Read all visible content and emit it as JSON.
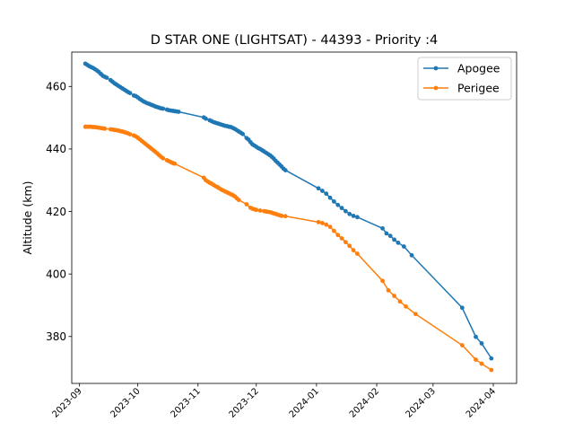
{
  "chart_data": {
    "type": "line",
    "title": "D STAR ONE (LIGHTSAT) - 44393 - Priority :4",
    "xlabel": "",
    "ylabel": "Altitude (km)",
    "xlim": [
      "2023-08-28",
      "2024-04-13"
    ],
    "ylim": [
      365,
      471
    ],
    "yticks": [
      380,
      400,
      420,
      440,
      460
    ],
    "xticks": [
      "2023-09",
      "2023-10",
      "2023-11",
      "2023-12",
      "2024-01",
      "2024-02",
      "2024-03",
      "2024-04"
    ],
    "legend_position": "top-right",
    "grid": false,
    "series": [
      {
        "name": "Apogee",
        "color": "#1f77b4",
        "points": [
          [
            "2023-09-04",
            467.3
          ],
          [
            "2023-09-05",
            466.9
          ],
          [
            "2023-09-06",
            466.5
          ],
          [
            "2023-09-07",
            466.2
          ],
          [
            "2023-09-08",
            465.9
          ],
          [
            "2023-09-09",
            465.5
          ],
          [
            "2023-09-10",
            465.1
          ],
          [
            "2023-09-11",
            464.6
          ],
          [
            "2023-09-12",
            464.0
          ],
          [
            "2023-09-13",
            463.4
          ],
          [
            "2023-09-14",
            463.1
          ],
          [
            "2023-09-15",
            462.8
          ],
          [
            "2023-09-17",
            462.0
          ],
          [
            "2023-09-18",
            461.5
          ],
          [
            "2023-09-19",
            461.0
          ],
          [
            "2023-09-20",
            460.6
          ],
          [
            "2023-09-21",
            460.2
          ],
          [
            "2023-09-22",
            459.8
          ],
          [
            "2023-09-23",
            459.4
          ],
          [
            "2023-09-24",
            459.0
          ],
          [
            "2023-09-25",
            458.6
          ],
          [
            "2023-09-26",
            458.2
          ],
          [
            "2023-09-27",
            457.9
          ],
          [
            "2023-09-29",
            457.1
          ],
          [
            "2023-09-30",
            456.9
          ],
          [
            "2023-10-01",
            456.5
          ],
          [
            "2023-10-02",
            456.0
          ],
          [
            "2023-10-03",
            455.6
          ],
          [
            "2023-10-04",
            455.2
          ],
          [
            "2023-10-05",
            454.9
          ],
          [
            "2023-10-06",
            454.6
          ],
          [
            "2023-10-07",
            454.4
          ],
          [
            "2023-10-08",
            454.1
          ],
          [
            "2023-10-09",
            453.9
          ],
          [
            "2023-10-10",
            453.6
          ],
          [
            "2023-10-11",
            453.4
          ],
          [
            "2023-10-12",
            453.2
          ],
          [
            "2023-10-13",
            453.0
          ],
          [
            "2023-10-14",
            452.9
          ],
          [
            "2023-10-16",
            452.6
          ],
          [
            "2023-10-17",
            452.4
          ],
          [
            "2023-10-18",
            452.3
          ],
          [
            "2023-10-19",
            452.2
          ],
          [
            "2023-10-20",
            452.1
          ],
          [
            "2023-10-21",
            452.0
          ],
          [
            "2023-10-22",
            451.9
          ],
          [
            "2023-11-04",
            450.1
          ],
          [
            "2023-11-05",
            449.7
          ],
          [
            "2023-11-07",
            449.2
          ],
          [
            "2023-11-08",
            448.9
          ],
          [
            "2023-11-09",
            448.6
          ],
          [
            "2023-11-10",
            448.4
          ],
          [
            "2023-11-11",
            448.2
          ],
          [
            "2023-11-12",
            448.0
          ],
          [
            "2023-11-13",
            447.8
          ],
          [
            "2023-11-14",
            447.6
          ],
          [
            "2023-11-15",
            447.4
          ],
          [
            "2023-11-16",
            447.3
          ],
          [
            "2023-11-17",
            447.1
          ],
          [
            "2023-11-18",
            447.0
          ],
          [
            "2023-11-19",
            446.7
          ],
          [
            "2023-11-20",
            446.4
          ],
          [
            "2023-11-21",
            446.0
          ],
          [
            "2023-11-22",
            445.6
          ],
          [
            "2023-11-23",
            445.2
          ],
          [
            "2023-11-24",
            444.8
          ],
          [
            "2023-11-26",
            443.5
          ],
          [
            "2023-11-27",
            443.0
          ],
          [
            "2023-11-28",
            442.2
          ],
          [
            "2023-11-29",
            441.5
          ],
          [
            "2023-11-30",
            441.1
          ],
          [
            "2023-12-01",
            440.7
          ],
          [
            "2023-12-02",
            440.3
          ],
          [
            "2023-12-03",
            440.0
          ],
          [
            "2023-12-04",
            439.6
          ],
          [
            "2023-12-05",
            439.2
          ],
          [
            "2023-12-06",
            438.8
          ],
          [
            "2023-12-07",
            438.4
          ],
          [
            "2023-12-08",
            438.0
          ],
          [
            "2023-12-09",
            437.5
          ],
          [
            "2023-12-10",
            436.9
          ],
          [
            "2023-12-11",
            436.2
          ],
          [
            "2023-12-12",
            435.6
          ],
          [
            "2023-12-13",
            435.0
          ],
          [
            "2023-12-14",
            434.4
          ],
          [
            "2023-12-15",
            433.7
          ],
          [
            "2023-12-16",
            433.2
          ],
          [
            "2024-01-02",
            427.4
          ],
          [
            "2024-01-04",
            426.6
          ],
          [
            "2024-01-06",
            425.7
          ],
          [
            "2024-01-08",
            424.4
          ],
          [
            "2024-01-10",
            423.2
          ],
          [
            "2024-01-12",
            422.1
          ],
          [
            "2024-01-14",
            421.1
          ],
          [
            "2024-01-16",
            420.1
          ],
          [
            "2024-01-18",
            419.2
          ],
          [
            "2024-01-20",
            418.6
          ],
          [
            "2024-01-22",
            418.2
          ],
          [
            "2024-02-04",
            414.6
          ],
          [
            "2024-02-06",
            413.0
          ],
          [
            "2024-02-08",
            412.2
          ],
          [
            "2024-02-10",
            411.0
          ],
          [
            "2024-02-12",
            410.0
          ],
          [
            "2024-02-15",
            408.8
          ],
          [
            "2024-02-19",
            406.0
          ],
          [
            "2024-03-16",
            389.2
          ],
          [
            "2024-03-23",
            379.9
          ],
          [
            "2024-03-26",
            377.8
          ],
          [
            "2024-03-31",
            373.0
          ]
        ]
      },
      {
        "name": "Perigee",
        "color": "#ff7f0e",
        "points": [
          [
            "2023-09-04",
            447.1
          ],
          [
            "2023-09-05",
            447.1
          ],
          [
            "2023-09-06",
            447.1
          ],
          [
            "2023-09-07",
            447.1
          ],
          [
            "2023-09-08",
            447.0
          ],
          [
            "2023-09-09",
            447.0
          ],
          [
            "2023-09-10",
            446.9
          ],
          [
            "2023-09-11",
            446.8
          ],
          [
            "2023-09-12",
            446.7
          ],
          [
            "2023-09-13",
            446.6
          ],
          [
            "2023-09-14",
            446.5
          ],
          [
            "2023-09-17",
            446.3
          ],
          [
            "2023-09-18",
            446.2
          ],
          [
            "2023-09-19",
            446.1
          ],
          [
            "2023-09-20",
            446.0
          ],
          [
            "2023-09-21",
            445.9
          ],
          [
            "2023-09-22",
            445.7
          ],
          [
            "2023-09-23",
            445.6
          ],
          [
            "2023-09-24",
            445.4
          ],
          [
            "2023-09-25",
            445.2
          ],
          [
            "2023-09-26",
            445.0
          ],
          [
            "2023-09-27",
            444.7
          ],
          [
            "2023-09-29",
            444.3
          ],
          [
            "2023-09-30",
            444.0
          ],
          [
            "2023-10-01",
            443.6
          ],
          [
            "2023-10-02",
            443.1
          ],
          [
            "2023-10-03",
            442.6
          ],
          [
            "2023-10-04",
            442.1
          ],
          [
            "2023-10-05",
            441.6
          ],
          [
            "2023-10-06",
            441.1
          ],
          [
            "2023-10-07",
            440.6
          ],
          [
            "2023-10-08",
            440.1
          ],
          [
            "2023-10-09",
            439.6
          ],
          [
            "2023-10-10",
            439.1
          ],
          [
            "2023-10-11",
            438.6
          ],
          [
            "2023-10-12",
            438.0
          ],
          [
            "2023-10-13",
            437.5
          ],
          [
            "2023-10-14",
            437.0
          ],
          [
            "2023-10-16",
            436.4
          ],
          [
            "2023-10-17",
            436.1
          ],
          [
            "2023-10-18",
            435.8
          ],
          [
            "2023-10-19",
            435.5
          ],
          [
            "2023-10-20",
            435.3
          ],
          [
            "2023-11-04",
            430.8
          ],
          [
            "2023-11-05",
            430.0
          ],
          [
            "2023-11-06",
            429.6
          ],
          [
            "2023-11-07",
            429.2
          ],
          [
            "2023-11-08",
            428.9
          ],
          [
            "2023-11-09",
            428.5
          ],
          [
            "2023-11-10",
            428.1
          ],
          [
            "2023-11-11",
            427.8
          ],
          [
            "2023-11-12",
            427.4
          ],
          [
            "2023-11-13",
            427.0
          ],
          [
            "2023-11-14",
            426.7
          ],
          [
            "2023-11-15",
            426.4
          ],
          [
            "2023-11-16",
            426.1
          ],
          [
            "2023-11-17",
            425.8
          ],
          [
            "2023-11-18",
            425.5
          ],
          [
            "2023-11-19",
            425.2
          ],
          [
            "2023-11-20",
            424.8
          ],
          [
            "2023-11-21",
            424.2
          ],
          [
            "2023-11-22",
            423.7
          ],
          [
            "2023-11-26",
            422.3
          ],
          [
            "2023-11-28",
            421.2
          ],
          [
            "2023-11-29",
            420.9
          ],
          [
            "2023-11-30",
            420.7
          ],
          [
            "2023-12-01",
            420.5
          ],
          [
            "2023-12-03",
            420.3
          ],
          [
            "2023-12-05",
            420.1
          ],
          [
            "2023-12-06",
            420.0
          ],
          [
            "2023-12-07",
            419.9
          ],
          [
            "2023-12-08",
            419.8
          ],
          [
            "2023-12-09",
            419.6
          ],
          [
            "2023-12-10",
            419.4
          ],
          [
            "2023-12-11",
            419.2
          ],
          [
            "2023-12-12",
            419.0
          ],
          [
            "2023-12-13",
            418.8
          ],
          [
            "2023-12-14",
            418.6
          ],
          [
            "2023-12-16",
            418.5
          ],
          [
            "2024-01-02",
            416.6
          ],
          [
            "2024-01-04",
            416.3
          ],
          [
            "2024-01-06",
            415.8
          ],
          [
            "2024-01-08",
            415.1
          ],
          [
            "2024-01-10",
            413.8
          ],
          [
            "2024-01-12",
            412.5
          ],
          [
            "2024-01-14",
            411.4
          ],
          [
            "2024-01-16",
            410.2
          ],
          [
            "2024-01-18",
            409.0
          ],
          [
            "2024-01-20",
            407.6
          ],
          [
            "2024-01-22",
            406.5
          ],
          [
            "2024-02-04",
            397.8
          ],
          [
            "2024-02-07",
            394.8
          ],
          [
            "2024-02-10",
            393.0
          ],
          [
            "2024-02-13",
            391.2
          ],
          [
            "2024-02-16",
            389.6
          ],
          [
            "2024-02-21",
            387.2
          ],
          [
            "2024-03-16",
            377.2
          ],
          [
            "2024-03-23",
            372.6
          ],
          [
            "2024-03-26",
            371.3
          ],
          [
            "2024-03-31",
            369.3
          ]
        ]
      }
    ]
  }
}
